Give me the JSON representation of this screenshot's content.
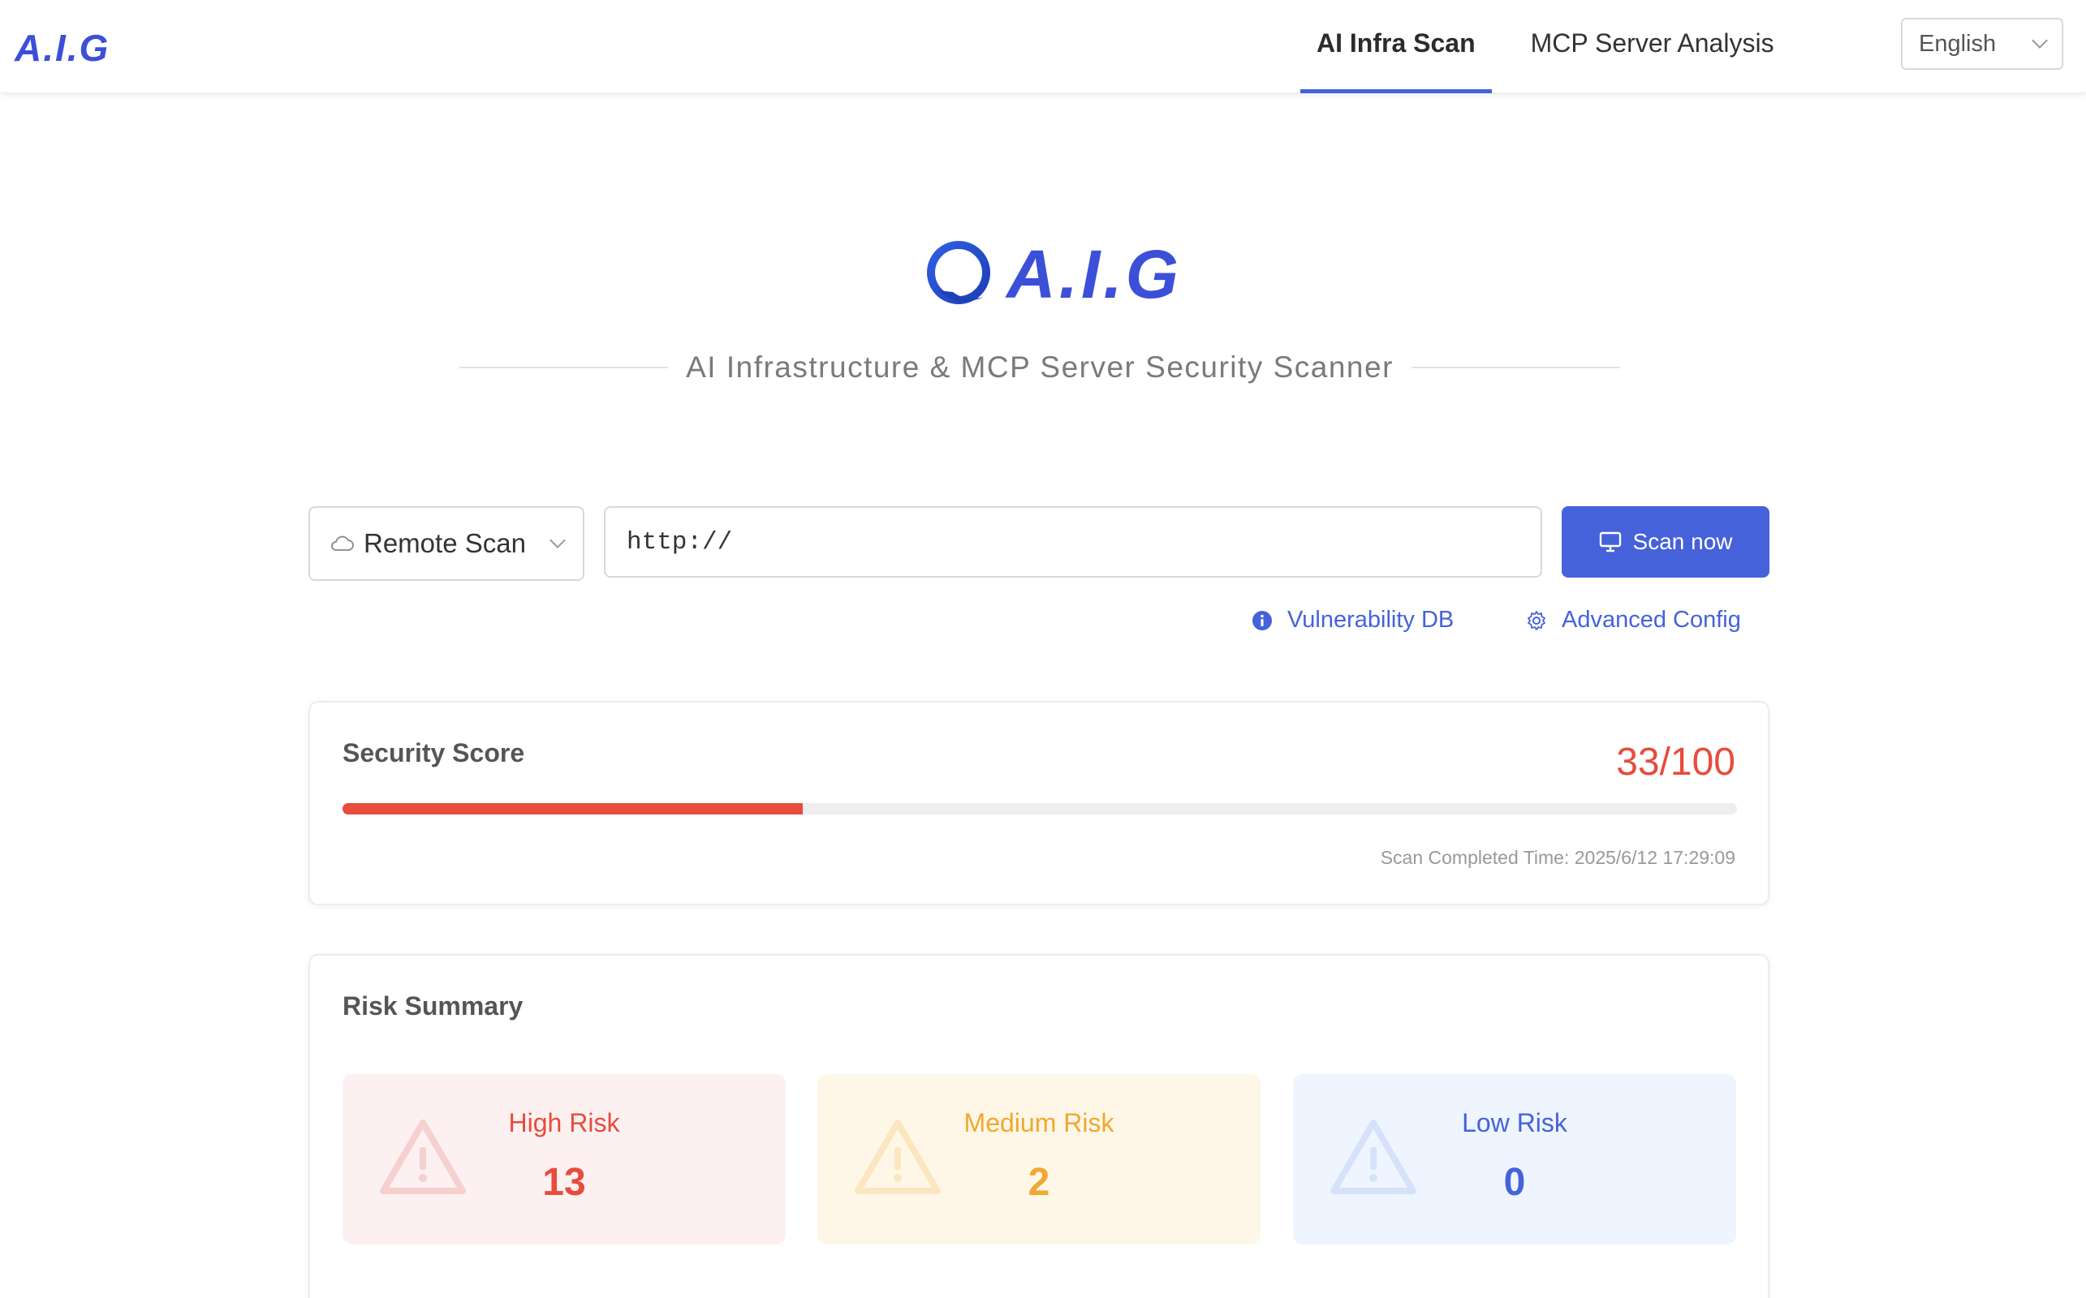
{
  "header": {
    "brand": "A.I.G",
    "tabs": [
      {
        "label": "AI Infra Scan",
        "active": true
      },
      {
        "label": "MCP Server Analysis",
        "active": false
      }
    ],
    "language": "English"
  },
  "hero": {
    "logo_text": "A.I.G",
    "tagline": "AI Infrastructure & MCP Server Security Scanner"
  },
  "scan": {
    "type_label": "Remote Scan",
    "target_value": "http://",
    "button_label": "Scan now",
    "links": {
      "vuln_db": "Vulnerability DB",
      "advanced": "Advanced Config"
    }
  },
  "security_score": {
    "title": "Security Score",
    "score_text": "33/100",
    "score": 33,
    "max": 100,
    "completed_time": "Scan Completed Time: 2025/6/12 17:29:09"
  },
  "risk_summary": {
    "title": "Risk Summary",
    "high": {
      "label": "High Risk",
      "count": "13"
    },
    "medium": {
      "label": "Medium Risk",
      "count": "2"
    },
    "low": {
      "label": "Low Risk",
      "count": "0"
    }
  },
  "colors": {
    "accent": "#4562db",
    "high": "#e74c3c",
    "medium": "#f0a830",
    "low": "#4562db"
  },
  "icons": [
    "cloud-icon",
    "monitor-icon",
    "info-icon",
    "gear-icon",
    "warning-triangle-icon",
    "chevron-down-icon"
  ]
}
